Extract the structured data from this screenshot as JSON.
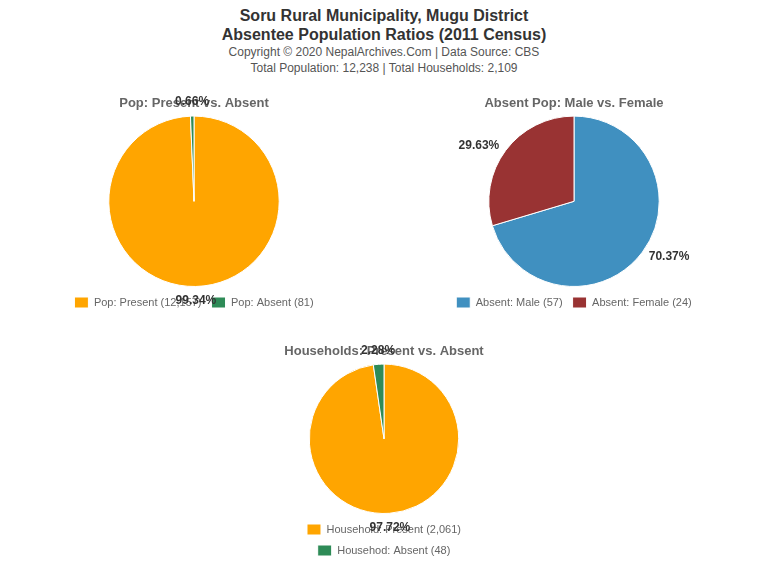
{
  "title": [
    "Soru Rural Municipality, Mugu District",
    "Absentee Population Ratios (2011 Census)"
  ],
  "annotations": [
    "Copyright © 2020 NepalArchives.Com | Data Source: CBS",
    "Total Population: 12,238 | Total Households: 2,109"
  ],
  "chart_data": [
    {
      "type": "pie",
      "title": "Pop: Present vs. Absent",
      "categories": [
        "Pop: Present (12,157)",
        "Pop: Absent (81)"
      ],
      "values": [
        99.34,
        0.66
      ],
      "value_labels": [
        "99.34%",
        "0.66%"
      ],
      "colors": [
        "#FFA500",
        "#2E8B57"
      ],
      "data_labels": true,
      "legend": "bottom"
    },
    {
      "type": "pie",
      "title": "Absent Pop: Male vs. Female",
      "categories": [
        "Absent: Male (57)",
        "Absent: Female (24)"
      ],
      "values": [
        70.37,
        29.63
      ],
      "value_labels": [
        "70.37%",
        "29.63%"
      ],
      "colors": [
        "#4090C0",
        "#993333"
      ],
      "data_labels": true,
      "legend": "bottom"
    },
    {
      "type": "pie",
      "title": "Households: Present vs. Absent",
      "categories": [
        "Household: Present (2,061)",
        "Househod: Absent (48)"
      ],
      "values": [
        97.72,
        2.28
      ],
      "value_labels": [
        "97.72%",
        "2.28%"
      ],
      "colors": [
        "#FFA500",
        "#2E8B57"
      ],
      "data_labels": true,
      "legend": "bottom"
    }
  ]
}
